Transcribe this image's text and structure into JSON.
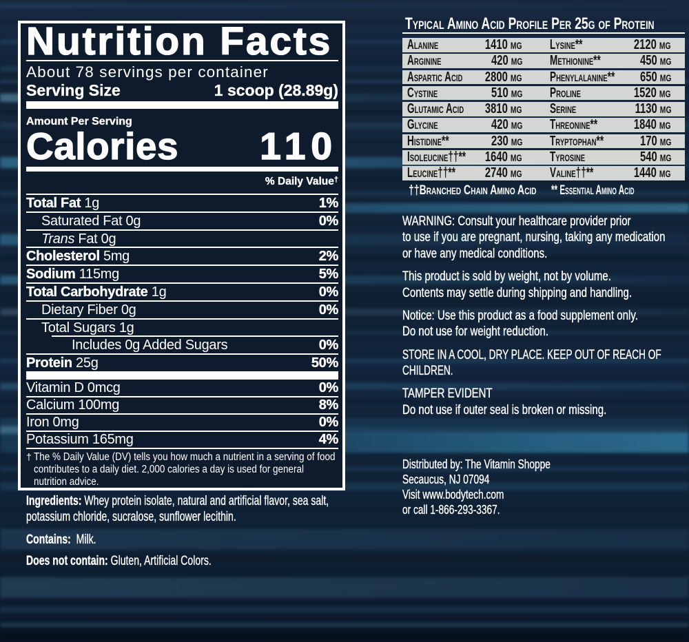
{
  "nutrition_panel": {
    "title": "Nutrition Facts",
    "servings_per_container": "About 78 servings per container",
    "serving_size_label": "Serving Size",
    "serving_size_value": "1 scoop (28.89g)",
    "amount_per_serving": "Amount Per Serving",
    "calories_label": "Calories",
    "calories_value": "110",
    "daily_value_header": "% Daily Value",
    "daily_value_symbol": "†",
    "rows": [
      {
        "name": "Total Fat",
        "amount": "1g",
        "dv": "1%",
        "bold": true,
        "indent": 0
      },
      {
        "name": "Saturated Fat",
        "amount": "0g",
        "dv": "0%",
        "bold": false,
        "indent": 1
      },
      {
        "name_italic": "Trans",
        "name": "Fat",
        "amount": "0g",
        "dv": "",
        "bold": false,
        "indent": 1
      },
      {
        "name": "Cholesterol",
        "amount": "5mg",
        "dv": "2%",
        "bold": true,
        "indent": 0
      },
      {
        "name": "Sodium",
        "amount": "115mg",
        "dv": "5%",
        "bold": true,
        "indent": 0
      },
      {
        "name": "Total Carbohydrate",
        "amount": "1g",
        "dv": "0%",
        "bold": true,
        "indent": 0
      },
      {
        "name": "Dietary Fiber",
        "amount": "0g",
        "dv": "0%",
        "bold": false,
        "indent": 1
      },
      {
        "name": "Total Sugars",
        "amount": "1g",
        "dv": "",
        "bold": false,
        "indent": 1
      },
      {
        "name": "Includes 0g Added Sugars",
        "amount": "",
        "dv": "0%",
        "bold": false,
        "indent": 2,
        "sep_indent": true
      },
      {
        "name": "Protein",
        "amount": "25g",
        "dv": "50%",
        "bold": true,
        "indent": 0
      }
    ],
    "vitamins": [
      {
        "name": "Vitamin D",
        "amount": "0mcg",
        "dv": "0%"
      },
      {
        "name": "Calcium",
        "amount": "100mg",
        "dv": "8%"
      },
      {
        "name": "Iron",
        "amount": "0mg",
        "dv": "0%"
      },
      {
        "name": "Potassium",
        "amount": "165mg",
        "dv": "4%"
      }
    ],
    "footnote_symbol": "†",
    "footnote_lines": [
      "The % Daily Value (DV) tells you how much a nutrient in a serving of food",
      "contributes to a daily diet. 2,000 calories a day is used for general",
      "nutrition advice."
    ]
  },
  "ingredients": {
    "label": "Ingredients:",
    "line1": "Whey protein isolate, natural and artificial flavor, sea salt,",
    "line2": "potassium chloride, sucralose, sunflower lecithin."
  },
  "contains": {
    "label": "Contains:",
    "text": "Milk."
  },
  "does_not_contain": {
    "label": "Does not contain:",
    "text": "Gluten, Artificial Colors."
  },
  "amino_profile": {
    "title": "Typical Amino Acid Profile Per 25g of Protein",
    "rows": [
      {
        "left_name": "Alanine",
        "left_value": "1410 mg",
        "right_name": "Lysine**",
        "right_value": "2120 mg"
      },
      {
        "left_name": "Arginine",
        "left_value": "420 mg",
        "right_name": "Methionine**",
        "right_value": "450 mg"
      },
      {
        "left_name": "Aspartic Acid",
        "left_value": "2800 mg",
        "right_name": "Phenylalanine**",
        "right_value": "650 mg"
      },
      {
        "left_name": "Cystine",
        "left_value": "510 mg",
        "right_name": "Proline",
        "right_value": "1520 mg"
      },
      {
        "left_name": "Glutamic Acid",
        "left_value": "3810 mg",
        "right_name": "Serine",
        "right_value": "1130 mg"
      },
      {
        "left_name": "Glycine",
        "left_value": "420 mg",
        "right_name": "Threonine**",
        "right_value": "1840 mg"
      },
      {
        "left_name": "Histidine**",
        "left_value": "230 mg",
        "right_name": "Tryptophan**",
        "right_value": "170 mg"
      },
      {
        "left_name": "Isoleucine††**",
        "left_value": "1640 mg",
        "right_name": "Tyrosine",
        "right_value": "540 mg"
      },
      {
        "left_name": "Leucine††**",
        "left_value": "2740 mg",
        "right_name": "Valine††**",
        "right_value": "1440 mg"
      }
    ],
    "legend_bcaa": "††Branched Chain Amino Acid",
    "legend_essential": "** Essential Amino Acid"
  },
  "warnings": [
    {
      "lines": [
        "WARNING: Consult your healthcare provider prior",
        "to use if you are pregnant, nursing, taking any medication",
        "or have any medical conditions."
      ]
    },
    {
      "lines": [
        "This product is sold by weight, not by volume.",
        "Contents may settle during shipping and handling."
      ]
    },
    {
      "lines": [
        "Notice: Use this product as a food supplement only.",
        "Do not use for weight reduction."
      ]
    },
    {
      "lines": [
        "STORE IN A COOL, DRY PLACE. KEEP OUT OF REACH OF",
        "CHILDREN."
      ]
    },
    {
      "lines": [
        "TAMPER EVIDENT",
        "Do not use if outer seal is broken or missing."
      ]
    }
  ],
  "distributor": {
    "lines": [
      "Distributed by: The Vitamin Shoppe",
      "Secaucus, NJ 07094",
      "Visit www.bodytech.com",
      "or call 1-866-293-3367."
    ]
  },
  "colors": {
    "background_navy": "#13253a",
    "panel_navy": "#0d1b2d",
    "text_white": "#ffffff",
    "amino_row_gray": "#d4d6d3",
    "streak_cyan": "#3fa3c8"
  }
}
